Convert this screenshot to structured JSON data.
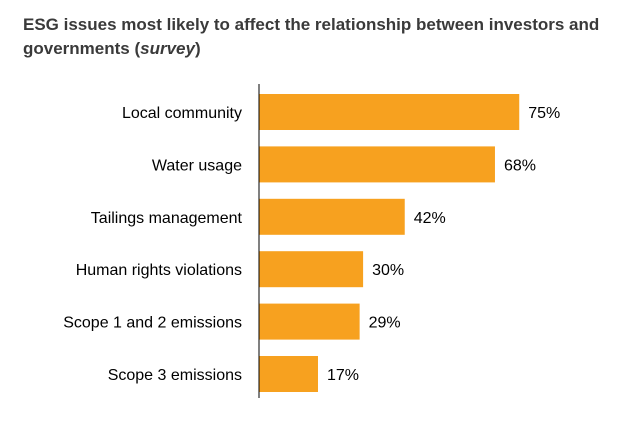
{
  "chart_data": {
    "type": "bar",
    "orientation": "horizontal",
    "title_main": "ESG issues most likely to affect the relationship between investors and governments (",
    "title_emphasis": "survey",
    "title_end": ")",
    "categories": [
      "Local community",
      "Water usage",
      "Tailings management",
      "Human rights violations",
      "Scope 1 and 2 emissions",
      "Scope 3 emissions"
    ],
    "values": [
      75,
      68,
      42,
      30,
      29,
      17
    ],
    "value_labels": [
      "75%",
      "68%",
      "42%",
      "30%",
      "29%",
      "17%"
    ],
    "xlim": [
      0,
      100
    ],
    "bar_color": "#F7A11F",
    "axis_color": "#000000",
    "grid": false,
    "legend": "none"
  }
}
